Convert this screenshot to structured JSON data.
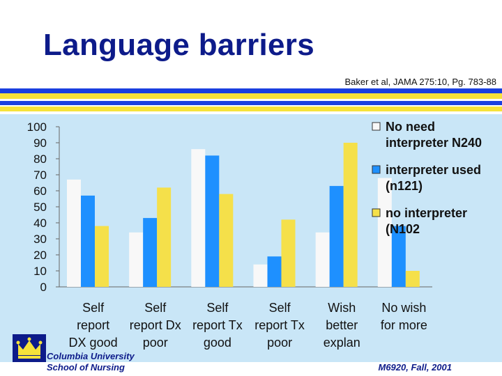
{
  "slide": {
    "title": "Language barriers",
    "citation": "Baker et al, JAMA 275:10, Pg. 783-88",
    "institution_line1": "Columbia University",
    "institution_line2": "School of Nursing",
    "course": "M6920, Fall, 2001",
    "logo_icon": "crown-icon"
  },
  "colors": {
    "title": "#0d1b8a",
    "stripe_blue": "#1a3fe0",
    "stripe_yellow": "#f6e23a",
    "chart_background": "#c9e6f7"
  },
  "chart_data": {
    "type": "bar",
    "title": "",
    "xlabel": "",
    "ylabel": "",
    "ylim": [
      0,
      100
    ],
    "yticks": [
      0,
      10,
      20,
      30,
      40,
      50,
      60,
      70,
      80,
      90,
      100
    ],
    "grid": false,
    "legend_position": "top-right",
    "categories": [
      [
        "Self",
        "report",
        "DX good"
      ],
      [
        "Self",
        "report Dx",
        "poor"
      ],
      [
        "Self",
        "report Tx",
        "good"
      ],
      [
        "Self",
        "report Tx",
        "poor"
      ],
      [
        "Wish",
        "better",
        "explan"
      ],
      [
        "No wish",
        "for more"
      ]
    ],
    "series": [
      {
        "name": [
          "No need",
          "interpreter N240"
        ],
        "color": "#f8f8f8",
        "values": [
          67,
          34,
          86,
          14,
          34,
          68
        ]
      },
      {
        "name": [
          "interpreter used",
          "(n121)"
        ],
        "color": "#1e90ff",
        "values": [
          57,
          43,
          82,
          19,
          63,
          38
        ]
      },
      {
        "name": [
          "no interpreter",
          "(N102"
        ],
        "color": "#f5e04a",
        "values": [
          38,
          62,
          58,
          42,
          90,
          10
        ]
      }
    ]
  }
}
